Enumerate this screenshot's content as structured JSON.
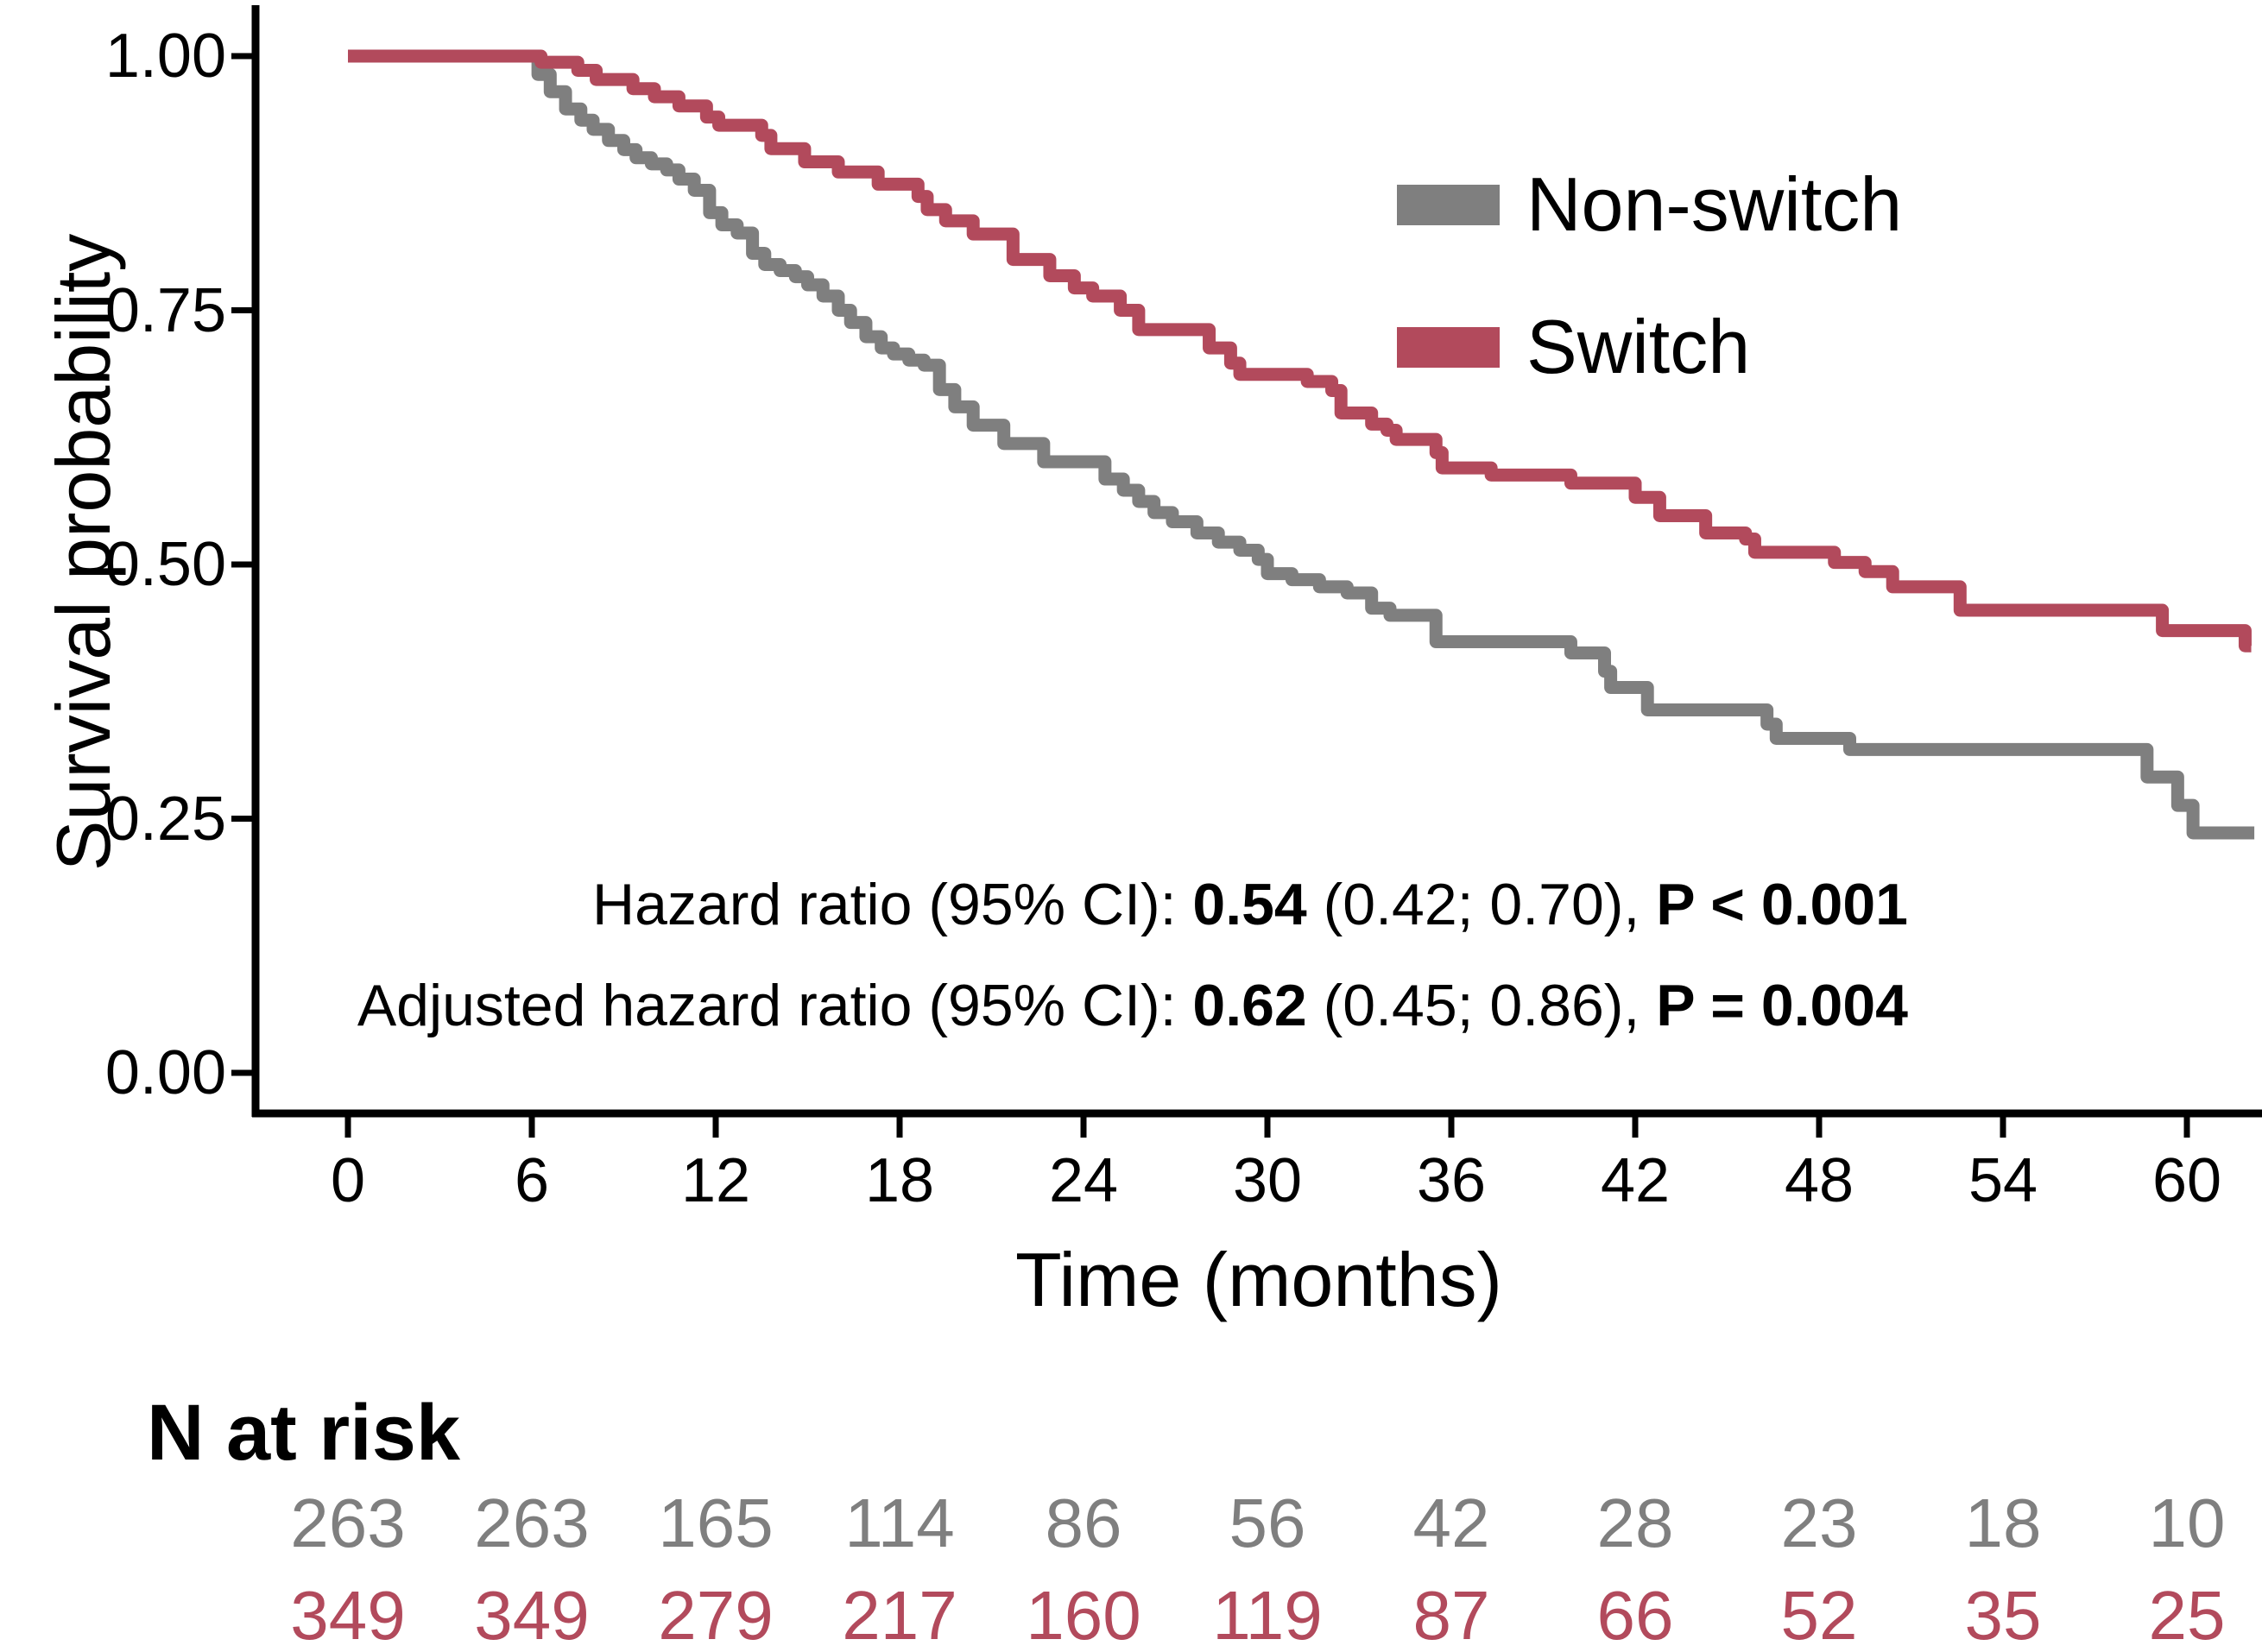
{
  "figure": {
    "background": "#ffffff"
  },
  "chart_data": {
    "type": "line",
    "step": true,
    "kind": "kaplan-meier",
    "title": "",
    "xlabel": "Time (months)",
    "ylabel": "Survival probability",
    "xlim": [
      0,
      62
    ],
    "ylim": [
      0,
      1
    ],
    "grid": false,
    "legend_position": "inside-top-right",
    "x_ticks": [
      0,
      6,
      12,
      18,
      24,
      30,
      36,
      42,
      48,
      54,
      60
    ],
    "y_ticks": [
      1.0,
      0.75,
      0.5,
      0.25,
      0.0
    ],
    "y_tick_labels": [
      "1.00",
      "0.75",
      "0.50",
      "0.25",
      "0.00"
    ],
    "x_tick_labels": [
      "0",
      "6",
      "12",
      "18",
      "24",
      "30",
      "36",
      "42",
      "48",
      "54",
      "60"
    ],
    "series": [
      {
        "name": "Non-switch",
        "color": "#7F7F7F",
        "steps": [
          [
            0,
            1.0
          ],
          [
            6.2,
            0.982
          ],
          [
            6.6,
            0.965
          ],
          [
            7.1,
            0.948
          ],
          [
            7.6,
            0.937
          ],
          [
            8.0,
            0.928
          ],
          [
            8.5,
            0.917
          ],
          [
            9.0,
            0.908
          ],
          [
            9.4,
            0.9
          ],
          [
            9.9,
            0.894
          ],
          [
            10.4,
            0.888
          ],
          [
            10.8,
            0.879
          ],
          [
            11.3,
            0.868
          ],
          [
            11.8,
            0.846
          ],
          [
            12.2,
            0.834
          ],
          [
            12.7,
            0.826
          ],
          [
            13.2,
            0.806
          ],
          [
            13.6,
            0.795
          ],
          [
            14.1,
            0.789
          ],
          [
            14.6,
            0.783
          ],
          [
            15.0,
            0.775
          ],
          [
            15.5,
            0.764
          ],
          [
            16.0,
            0.75
          ],
          [
            16.4,
            0.738
          ],
          [
            16.9,
            0.724
          ],
          [
            17.4,
            0.713
          ],
          [
            17.8,
            0.707
          ],
          [
            18.3,
            0.701
          ],
          [
            18.8,
            0.696
          ],
          [
            19.3,
            0.672
          ],
          [
            19.8,
            0.655
          ],
          [
            20.4,
            0.637
          ],
          [
            21.4,
            0.619
          ],
          [
            22.7,
            0.601
          ],
          [
            24.7,
            0.584
          ],
          [
            25.3,
            0.573
          ],
          [
            25.8,
            0.562
          ],
          [
            26.3,
            0.551
          ],
          [
            26.9,
            0.542
          ],
          [
            27.7,
            0.531
          ],
          [
            28.4,
            0.522
          ],
          [
            29.1,
            0.514
          ],
          [
            29.7,
            0.505
          ],
          [
            30.0,
            0.491
          ],
          [
            30.8,
            0.485
          ],
          [
            31.7,
            0.478
          ],
          [
            32.6,
            0.472
          ],
          [
            33.4,
            0.457
          ],
          [
            34.0,
            0.45
          ],
          [
            35.5,
            0.424
          ],
          [
            39.9,
            0.413
          ],
          [
            41.0,
            0.395
          ],
          [
            41.2,
            0.379
          ],
          [
            42.4,
            0.357
          ],
          [
            46.3,
            0.343
          ],
          [
            46.6,
            0.329
          ],
          [
            49.0,
            0.318
          ],
          [
            58.7,
            0.291
          ],
          [
            59.7,
            0.263
          ],
          [
            60.2,
            0.236
          ],
          [
            62.2,
            0.236
          ]
        ]
      },
      {
        "name": "Switch",
        "color": "#B24A5C",
        "steps": [
          [
            0,
            1.0
          ],
          [
            6.3,
            0.994
          ],
          [
            7.5,
            0.986
          ],
          [
            8.1,
            0.977
          ],
          [
            9.3,
            0.968
          ],
          [
            10.0,
            0.96
          ],
          [
            10.8,
            0.951
          ],
          [
            11.7,
            0.94
          ],
          [
            12.1,
            0.932
          ],
          [
            13.5,
            0.922
          ],
          [
            13.8,
            0.909
          ],
          [
            14.9,
            0.896
          ],
          [
            16.0,
            0.886
          ],
          [
            17.3,
            0.874
          ],
          [
            18.6,
            0.862
          ],
          [
            18.9,
            0.849
          ],
          [
            19.5,
            0.838
          ],
          [
            20.4,
            0.825
          ],
          [
            21.7,
            0.8
          ],
          [
            22.9,
            0.784
          ],
          [
            23.7,
            0.772
          ],
          [
            24.3,
            0.764
          ],
          [
            25.2,
            0.75
          ],
          [
            25.8,
            0.731
          ],
          [
            28.1,
            0.713
          ],
          [
            28.8,
            0.698
          ],
          [
            29.1,
            0.687
          ],
          [
            31.3,
            0.68
          ],
          [
            32.1,
            0.671
          ],
          [
            32.4,
            0.649
          ],
          [
            33.4,
            0.638
          ],
          [
            33.9,
            0.632
          ],
          [
            34.2,
            0.623
          ],
          [
            35.5,
            0.61
          ],
          [
            35.7,
            0.595
          ],
          [
            37.3,
            0.588
          ],
          [
            39.9,
            0.58
          ],
          [
            42.0,
            0.566
          ],
          [
            42.8,
            0.548
          ],
          [
            44.3,
            0.531
          ],
          [
            45.6,
            0.525
          ],
          [
            45.9,
            0.512
          ],
          [
            48.5,
            0.502
          ],
          [
            49.5,
            0.493
          ],
          [
            50.4,
            0.478
          ],
          [
            52.6,
            0.455
          ],
          [
            59.2,
            0.435
          ],
          [
            61.9,
            0.42
          ],
          [
            62.1,
            0.42
          ]
        ]
      }
    ],
    "annotation_lines": [
      {
        "parts": [
          {
            "text": "Hazard ratio (95% CI): ",
            "bold": false
          },
          {
            "text": "0.54",
            "bold": true
          },
          {
            "text": " (0.42; 0.70), ",
            "bold": false
          },
          {
            "text": "P < 0.001",
            "bold": true
          }
        ]
      },
      {
        "parts": [
          {
            "text": "Adjusted hazard ratio (95% CI): ",
            "bold": false
          },
          {
            "text": "0.62",
            "bold": true
          },
          {
            "text": " (0.45; 0.86), ",
            "bold": false
          },
          {
            "text": "P = 0.004",
            "bold": true
          }
        ]
      }
    ],
    "n_at_risk": {
      "heading": "N at risk",
      "times": [
        0,
        6,
        12,
        18,
        24,
        30,
        36,
        42,
        48,
        54,
        60
      ],
      "rows": [
        {
          "name": "Non-switch",
          "color": "#7F7F7F",
          "values": [
            263,
            263,
            165,
            114,
            86,
            56,
            42,
            28,
            23,
            18,
            10
          ]
        },
        {
          "name": "Switch",
          "color": "#B24A5C",
          "values": [
            349,
            349,
            279,
            217,
            160,
            119,
            87,
            66,
            52,
            35,
            25
          ]
        }
      ]
    }
  }
}
